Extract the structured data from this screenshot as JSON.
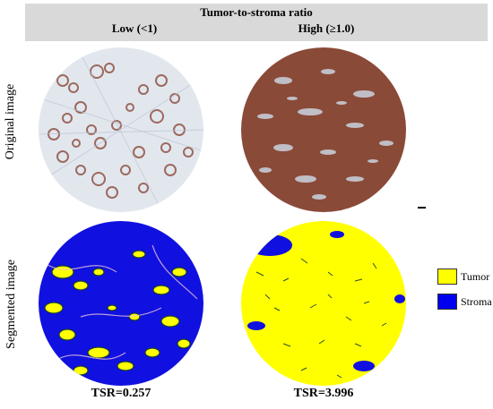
{
  "header": {
    "title": "Tumor-to-stroma ratio",
    "columns": [
      "Low (<1)",
      "High (≥1.0)"
    ]
  },
  "rows": [
    "Original image",
    "Segmented image"
  ],
  "tsr": [
    "TSR=0.257",
    "TSR=3.996"
  ],
  "legend": [
    {
      "label": "Tumor",
      "color": "#ffff00"
    },
    {
      "label": "Stroma",
      "color": "#0000ee"
    }
  ],
  "colors": {
    "header_band": "#d9d9d9",
    "he_low_background": "#e4e8ef",
    "he_high_background": "#8a4a38",
    "segmented_background": "#1010e0",
    "segmented_tumor": "#ffff00",
    "segmented_edge": "#163d33"
  }
}
